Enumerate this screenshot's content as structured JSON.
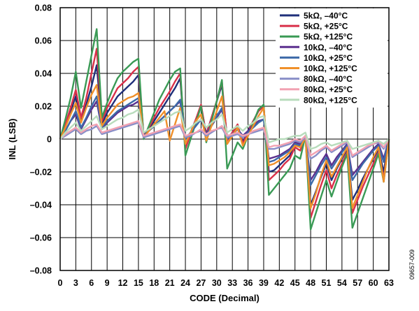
{
  "side_note": "09657-009",
  "chart_data": {
    "type": "line",
    "xlabel": "CODE (Decimal)",
    "ylabel": "INL (LSB)",
    "xlim": [
      0,
      63
    ],
    "ylim": [
      -0.08,
      0.08
    ],
    "x_ticks": [
      0,
      3,
      6,
      9,
      12,
      15,
      18,
      21,
      24,
      27,
      30,
      33,
      36,
      39,
      42,
      45,
      48,
      51,
      54,
      57,
      60,
      63
    ],
    "x_tick_labels": [
      "0",
      "3",
      "6",
      "9",
      "12",
      "15",
      "18",
      "21",
      "24",
      "27",
      "30",
      "33",
      "36",
      "39",
      "42",
      "45",
      "48",
      "51",
      "54",
      "57",
      "60",
      "63"
    ],
    "y_ticks": [
      -0.08,
      -0.06,
      -0.04,
      -0.02,
      0,
      0.02,
      0.04,
      0.06,
      0.08
    ],
    "y_tick_labels": [
      "–0.08",
      "–0.06",
      "–0.04",
      "–0.02",
      "0",
      "0.02",
      "0.04",
      "0.06",
      "0.08"
    ],
    "grid": true,
    "legend_position": "top-right",
    "x": [
      0,
      1,
      2,
      3,
      4,
      5,
      6,
      7,
      8,
      9,
      10,
      11,
      12,
      13,
      14,
      15,
      16,
      17,
      18,
      19,
      20,
      21,
      22,
      23,
      24,
      25,
      26,
      27,
      28,
      29,
      30,
      31,
      32,
      33,
      34,
      35,
      36,
      37,
      38,
      39,
      40,
      41,
      42,
      43,
      44,
      45,
      46,
      47,
      48,
      49,
      50,
      51,
      52,
      53,
      54,
      55,
      56,
      57,
      58,
      59,
      60,
      61,
      62,
      63
    ],
    "series": [
      {
        "name": "5kΩ, –40°C",
        "color": "#1f2f7a",
        "values": [
          0.0,
          0.008,
          0.017,
          0.026,
          0.011,
          0.021,
          0.032,
          0.045,
          0.009,
          0.016,
          0.021,
          0.026,
          0.029,
          0.032,
          0.035,
          0.039,
          0.002,
          0.006,
          0.011,
          0.016,
          0.021,
          0.026,
          0.031,
          0.037,
          -0.004,
          0.004,
          0.012,
          0.02,
          0.003,
          0.013,
          0.023,
          0.033,
          0.0,
          0.004,
          0.008,
          -0.002,
          0.005,
          0.011,
          0.017,
          0.02,
          -0.02,
          -0.019,
          -0.016,
          -0.013,
          -0.01,
          -0.003,
          -0.005,
          0.002,
          -0.04,
          -0.032,
          -0.023,
          -0.015,
          -0.025,
          -0.018,
          -0.012,
          -0.006,
          -0.037,
          -0.031,
          -0.024,
          -0.018,
          -0.012,
          -0.006,
          -0.02,
          0.0
        ]
      },
      {
        "name": "5kΩ, +25°C",
        "color": "#d9304a",
        "values": [
          0.0,
          0.009,
          0.019,
          0.03,
          0.013,
          0.025,
          0.04,
          0.055,
          0.011,
          0.019,
          0.025,
          0.031,
          0.034,
          0.037,
          0.041,
          0.044,
          0.002,
          0.007,
          0.013,
          0.019,
          0.024,
          0.029,
          0.035,
          0.04,
          -0.006,
          0.003,
          0.012,
          0.021,
          0.002,
          0.013,
          0.023,
          0.035,
          -0.001,
          0.004,
          0.009,
          -0.003,
          0.004,
          0.011,
          0.017,
          0.02,
          -0.025,
          -0.022,
          -0.019,
          -0.015,
          -0.012,
          -0.005,
          -0.007,
          0.002,
          -0.048,
          -0.038,
          -0.028,
          -0.019,
          -0.03,
          -0.022,
          -0.015,
          -0.008,
          -0.045,
          -0.037,
          -0.029,
          -0.022,
          -0.015,
          -0.008,
          -0.024,
          0.0
        ]
      },
      {
        "name": "5kΩ, +125°C",
        "color": "#3a9a55",
        "values": [
          0.0,
          0.012,
          0.025,
          0.041,
          0.019,
          0.035,
          0.051,
          0.067,
          0.013,
          0.022,
          0.03,
          0.037,
          0.041,
          0.044,
          0.047,
          0.049,
          0.0,
          0.008,
          0.016,
          0.024,
          0.03,
          0.036,
          0.041,
          0.043,
          -0.01,
          0.0,
          0.01,
          0.02,
          -0.002,
          0.011,
          0.023,
          0.036,
          -0.018,
          -0.01,
          -0.002,
          -0.006,
          0.002,
          0.01,
          0.018,
          0.021,
          -0.034,
          -0.03,
          -0.026,
          -0.022,
          -0.018,
          -0.01,
          -0.012,
          0.002,
          -0.055,
          -0.045,
          -0.035,
          -0.025,
          -0.035,
          -0.026,
          -0.017,
          -0.009,
          -0.054,
          -0.045,
          -0.036,
          -0.027,
          -0.018,
          -0.009,
          -0.026,
          0.0
        ]
      },
      {
        "name": "10kΩ, –40°C",
        "color": "#5b2f8e",
        "values": [
          0.0,
          0.005,
          0.011,
          0.015,
          0.006,
          0.012,
          0.018,
          0.023,
          0.006,
          0.01,
          0.013,
          0.016,
          0.018,
          0.02,
          0.021,
          0.023,
          0.002,
          0.005,
          0.008,
          0.011,
          0.014,
          0.017,
          0.02,
          0.023,
          0.0,
          0.004,
          0.008,
          0.012,
          0.003,
          0.008,
          0.013,
          0.018,
          0.0,
          0.003,
          0.006,
          0.002,
          0.005,
          0.008,
          0.011,
          0.012,
          -0.012,
          -0.011,
          -0.01,
          -0.008,
          -0.006,
          -0.002,
          -0.003,
          0.001,
          -0.025,
          -0.02,
          -0.014,
          -0.009,
          -0.016,
          -0.011,
          -0.007,
          -0.003,
          -0.022,
          -0.018,
          -0.014,
          -0.01,
          -0.006,
          -0.003,
          -0.012,
          0.0
        ]
      },
      {
        "name": "10kΩ, +25°C",
        "color": "#3d6aa8",
        "values": [
          0.0,
          0.005,
          0.011,
          0.017,
          0.007,
          0.013,
          0.02,
          0.026,
          0.007,
          0.011,
          0.014,
          0.017,
          0.019,
          0.021,
          0.023,
          0.025,
          0.002,
          0.005,
          0.008,
          0.011,
          0.014,
          0.017,
          0.02,
          0.024,
          0.0,
          0.004,
          0.008,
          0.012,
          0.002,
          0.008,
          0.014,
          0.019,
          0.0,
          0.003,
          0.006,
          0.001,
          0.004,
          0.007,
          0.01,
          0.012,
          -0.014,
          -0.013,
          -0.011,
          -0.009,
          -0.007,
          -0.003,
          -0.004,
          0.001,
          -0.028,
          -0.022,
          -0.016,
          -0.011,
          -0.018,
          -0.013,
          -0.008,
          -0.004,
          -0.025,
          -0.02,
          -0.015,
          -0.011,
          -0.007,
          -0.004,
          -0.014,
          0.0
        ]
      },
      {
        "name": "10kΩ, +125°C",
        "color": "#f0902a",
        "values": [
          0.0,
          0.007,
          0.015,
          0.022,
          0.01,
          0.019,
          0.027,
          0.033,
          0.008,
          0.013,
          0.017,
          0.021,
          0.023,
          0.025,
          0.026,
          0.028,
          0.001,
          0.005,
          0.009,
          0.013,
          0.017,
          -0.001,
          0.009,
          0.019,
          -0.003,
          0.004,
          0.011,
          0.015,
          -0.001,
          0.008,
          0.017,
          0.026,
          -0.003,
          0.002,
          0.007,
          -0.004,
          0.002,
          0.008,
          0.014,
          0.019,
          -0.016,
          -0.015,
          -0.013,
          -0.011,
          -0.008,
          -0.004,
          -0.005,
          0.001,
          -0.042,
          -0.033,
          -0.022,
          -0.013,
          -0.023,
          -0.017,
          -0.011,
          -0.005,
          -0.042,
          -0.034,
          -0.026,
          -0.018,
          -0.011,
          -0.005,
          -0.026,
          0.0
        ]
      },
      {
        "name": "80kΩ, –40°C",
        "color": "#8a8fc8",
        "values": [
          0.0,
          0.002,
          0.004,
          0.006,
          0.003,
          0.005,
          0.006,
          0.008,
          0.003,
          0.004,
          0.005,
          0.006,
          0.007,
          0.008,
          0.009,
          0.01,
          0.001,
          0.002,
          0.003,
          0.004,
          0.005,
          0.006,
          0.007,
          0.008,
          0.001,
          0.002,
          0.004,
          0.005,
          0.002,
          0.004,
          0.006,
          0.007,
          0.001,
          0.002,
          0.003,
          0.001,
          0.003,
          0.004,
          0.005,
          0.006,
          -0.006,
          -0.006,
          -0.005,
          -0.004,
          -0.003,
          -0.001,
          -0.002,
          0.001,
          -0.012,
          -0.01,
          -0.007,
          -0.005,
          -0.008,
          -0.006,
          -0.004,
          -0.002,
          -0.011,
          -0.009,
          -0.007,
          -0.005,
          -0.003,
          -0.002,
          -0.006,
          0.0
        ]
      },
      {
        "name": "80kΩ, +25°C",
        "color": "#f2a2b2",
        "values": [
          0.0,
          0.003,
          0.005,
          0.007,
          0.004,
          0.006,
          0.008,
          0.009,
          0.004,
          0.005,
          0.006,
          0.007,
          0.008,
          0.009,
          0.01,
          0.011,
          0.002,
          0.003,
          0.004,
          0.005,
          0.006,
          0.007,
          0.008,
          0.009,
          0.002,
          0.003,
          0.004,
          0.006,
          0.003,
          0.005,
          0.006,
          0.008,
          0.002,
          0.003,
          0.004,
          0.002,
          0.003,
          0.005,
          0.006,
          0.007,
          -0.005,
          -0.004,
          -0.004,
          -0.003,
          -0.002,
          0.0,
          -0.001,
          0.002,
          -0.01,
          -0.008,
          -0.006,
          -0.004,
          -0.007,
          -0.005,
          -0.003,
          -0.001,
          -0.01,
          -0.008,
          -0.006,
          -0.004,
          -0.003,
          -0.001,
          -0.005,
          0.0
        ]
      },
      {
        "name": "80kΩ, +125°C",
        "color": "#b8dcbc",
        "values": [
          0.0,
          0.004,
          0.007,
          0.01,
          0.005,
          0.008,
          0.011,
          0.014,
          0.006,
          0.008,
          0.01,
          0.012,
          0.013,
          0.015,
          0.016,
          0.018,
          0.004,
          0.006,
          0.008,
          0.01,
          0.012,
          0.014,
          0.016,
          0.017,
          0.005,
          0.007,
          0.01,
          0.012,
          0.007,
          0.01,
          0.012,
          0.015,
          0.004,
          0.006,
          0.008,
          0.005,
          0.008,
          0.01,
          0.013,
          0.014,
          -0.002,
          -0.001,
          0.0,
          0.0,
          0.001,
          0.002,
          0.002,
          0.004,
          -0.006,
          -0.005,
          -0.003,
          -0.002,
          -0.004,
          -0.003,
          -0.002,
          -0.001,
          -0.006,
          -0.005,
          -0.004,
          -0.003,
          -0.002,
          -0.001,
          -0.003,
          0.0
        ]
      }
    ]
  }
}
